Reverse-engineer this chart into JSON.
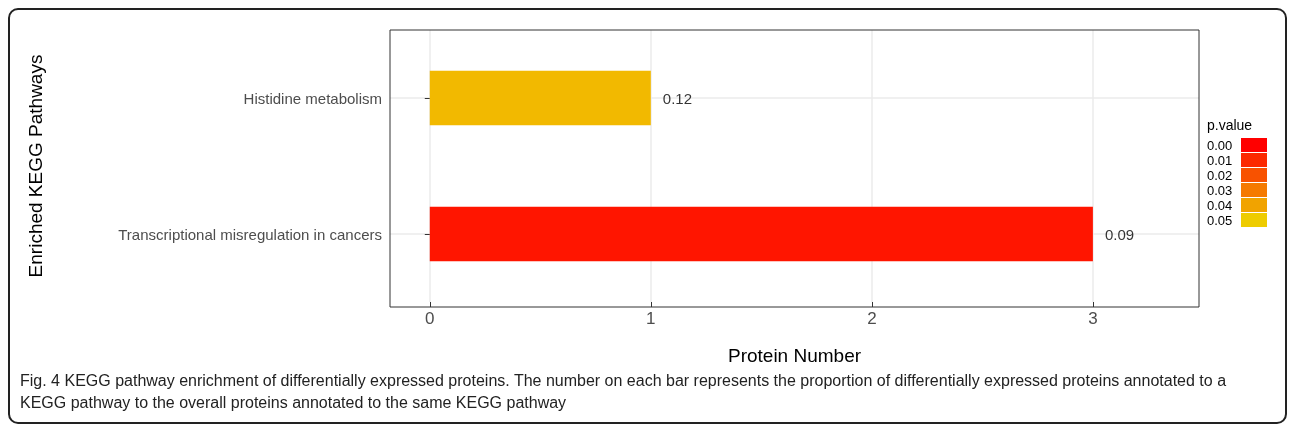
{
  "chart_data": {
    "type": "bar",
    "orientation": "horizontal",
    "xlabel": "Protein Number",
    "ylabel": "Enriched KEGG Pathways",
    "categories": [
      "Histidine metabolism",
      "Transcriptional misregulation in cancers"
    ],
    "values": [
      1,
      3
    ],
    "colors": [
      "#f2b900",
      "#ff1500"
    ],
    "xlim": [
      -0.18,
      3.48
    ],
    "xticks": [
      0,
      1,
      2,
      3
    ],
    "grid": true,
    "clabel": "p.value",
    "cticks": [
      {
        "value": 0,
        "label": "0.00"
      },
      {
        "value": 0.01,
        "label": "0.01"
      },
      {
        "value": 0.02,
        "label": "0.02"
      },
      {
        "value": 0.03,
        "label": "0.03"
      },
      {
        "value": 0.04,
        "label": "0.04"
      },
      {
        "value": 0.05,
        "label": "0.05"
      }
    ],
    "annotations": [
      {
        "text": "0.12",
        "x": 1,
        "y": "Histidine metabolism"
      },
      {
        "text": "0.09",
        "x": 3,
        "y": "Transcriptional misregulation in cancers"
      },
      "Fig. 4 KEGG pathway enrichment of differentially expressed proteins. The number on each bar represents the proportion of differentially expressed proteins annotated to a KEGG pathway to the overall proteins annotated to the same KEGG pathway"
    ]
  }
}
